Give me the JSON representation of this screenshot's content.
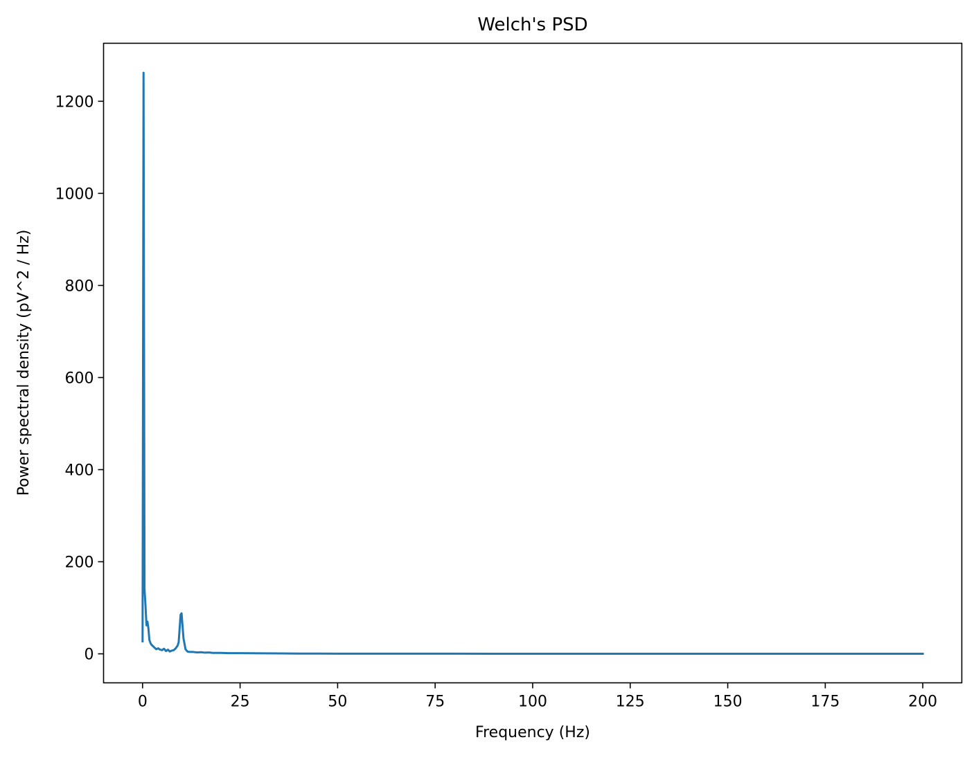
{
  "chart_data": {
    "type": "line",
    "title": "Welch's PSD",
    "xlabel": "Frequency (Hz)",
    "ylabel": "Power spectral density (pV^2 / Hz)",
    "xlim": [
      -10,
      210
    ],
    "ylim": [
      -63,
      1326
    ],
    "xticks": [
      0,
      25,
      50,
      75,
      100,
      125,
      150,
      175,
      200
    ],
    "xtick_labels": [
      "0",
      "25",
      "50",
      "75",
      "100",
      "125",
      "150",
      "175",
      "200"
    ],
    "yticks": [
      0,
      200,
      400,
      600,
      800,
      1000,
      1200
    ],
    "ytick_labels": [
      "0",
      "200",
      "400",
      "600",
      "800",
      "1000",
      "1200"
    ],
    "grid": false,
    "legend": "none",
    "series": [
      {
        "color": "#1f77b4",
        "x": [
          0,
          0.25,
          0.5,
          0.75,
          1.0,
          1.25,
          1.5,
          1.75,
          2.0,
          2.25,
          2.5,
          3.0,
          3.5,
          4.0,
          4.5,
          5.0,
          5.5,
          6.0,
          6.5,
          7.0,
          7.5,
          8.0,
          8.5,
          9.0,
          9.25,
          9.5,
          9.75,
          10.0,
          10.25,
          10.5,
          10.75,
          11.0,
          11.5,
          12.0,
          13.0,
          14.0,
          15.0,
          16.0,
          17.0,
          18.0,
          20.0,
          22.0,
          25.0,
          28.0,
          31.0,
          35.0,
          40.0,
          45.0,
          50.0,
          60.0,
          70.0,
          80.0,
          90.0,
          100.0,
          120.0,
          140.0,
          160.0,
          180.0,
          200.0
        ],
        "y": [
          27,
          1262,
          140,
          105,
          62,
          70,
          55,
          30,
          24,
          20,
          18,
          14,
          10,
          12,
          9,
          8,
          11,
          6,
          9,
          5,
          7,
          8,
          12,
          18,
          25,
          55,
          85,
          88,
          60,
          33,
          22,
          10,
          5,
          4,
          4,
          3,
          3.5,
          2.5,
          3,
          2,
          2,
          1.5,
          1.5,
          1.2,
          1,
          0.8,
          0.6,
          0.5,
          0.4,
          0.3,
          0.3,
          0.25,
          0.2,
          0.2,
          0.15,
          0.15,
          0.1,
          0.1,
          0.1
        ]
      }
    ]
  }
}
